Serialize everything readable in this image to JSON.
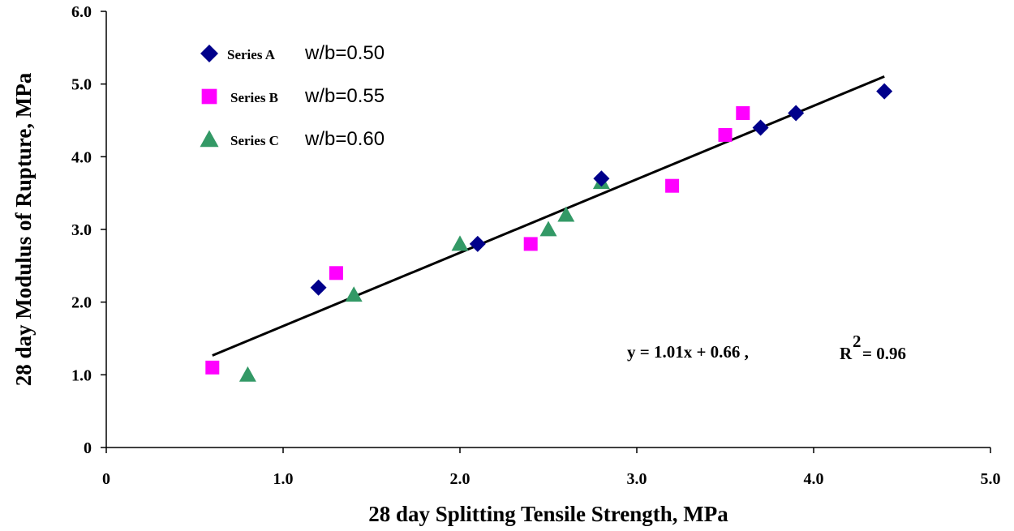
{
  "chart_data": {
    "type": "scatter",
    "title": "",
    "xlabel": "28 day Splitting Tensile Strength, MPa",
    "ylabel": "28 day Modulus of Rupture, MPa",
    "xlim": [
      0,
      5.0
    ],
    "ylim": [
      0,
      6.0
    ],
    "x_ticks": [
      0,
      1.0,
      2.0,
      3.0,
      4.0,
      5.0
    ],
    "x_tick_labels": [
      "0",
      "1.0",
      "2.0",
      "3.0",
      "4.0",
      "5.0"
    ],
    "y_ticks": [
      0,
      1.0,
      2.0,
      3.0,
      4.0,
      5.0,
      6.0
    ],
    "y_tick_labels": [
      "0",
      "1.0",
      "2.0",
      "3.0",
      "4.0",
      "5.0",
      "6.0"
    ],
    "grid": false,
    "legend_position": "top-left",
    "series": [
      {
        "name": "Series A",
        "label_suffix": "w/b=0.50",
        "marker": "diamond",
        "color": "#00008B",
        "x": [
          1.2,
          2.1,
          2.8,
          3.7,
          3.9,
          4.4
        ],
        "y": [
          2.2,
          2.8,
          3.7,
          4.4,
          4.6,
          4.9
        ]
      },
      {
        "name": "Series B",
        "label_suffix": "w/b=0.55",
        "marker": "square",
        "color": "#FF00FF",
        "x": [
          0.6,
          1.3,
          2.4,
          3.2,
          3.5,
          3.6
        ],
        "y": [
          1.1,
          2.4,
          2.8,
          3.6,
          4.3,
          4.6
        ]
      },
      {
        "name": "Series C",
        "label_suffix": "w/b=0.60",
        "marker": "triangle",
        "color": "#339966",
        "x": [
          0.8,
          1.4,
          2.0,
          2.5,
          2.6,
          2.8
        ],
        "y": [
          1.0,
          2.1,
          2.8,
          3.0,
          3.2,
          3.65
        ]
      }
    ],
    "trendline": {
      "slope": 1.01,
      "intercept": 0.66,
      "x_range": [
        0.6,
        4.4
      ],
      "color": "#000000"
    },
    "annotation": {
      "equation": "y =  1.01x  +  0.66 ,",
      "r_label": "R",
      "r_exp": "2",
      "r_value": "= 0.96"
    }
  }
}
